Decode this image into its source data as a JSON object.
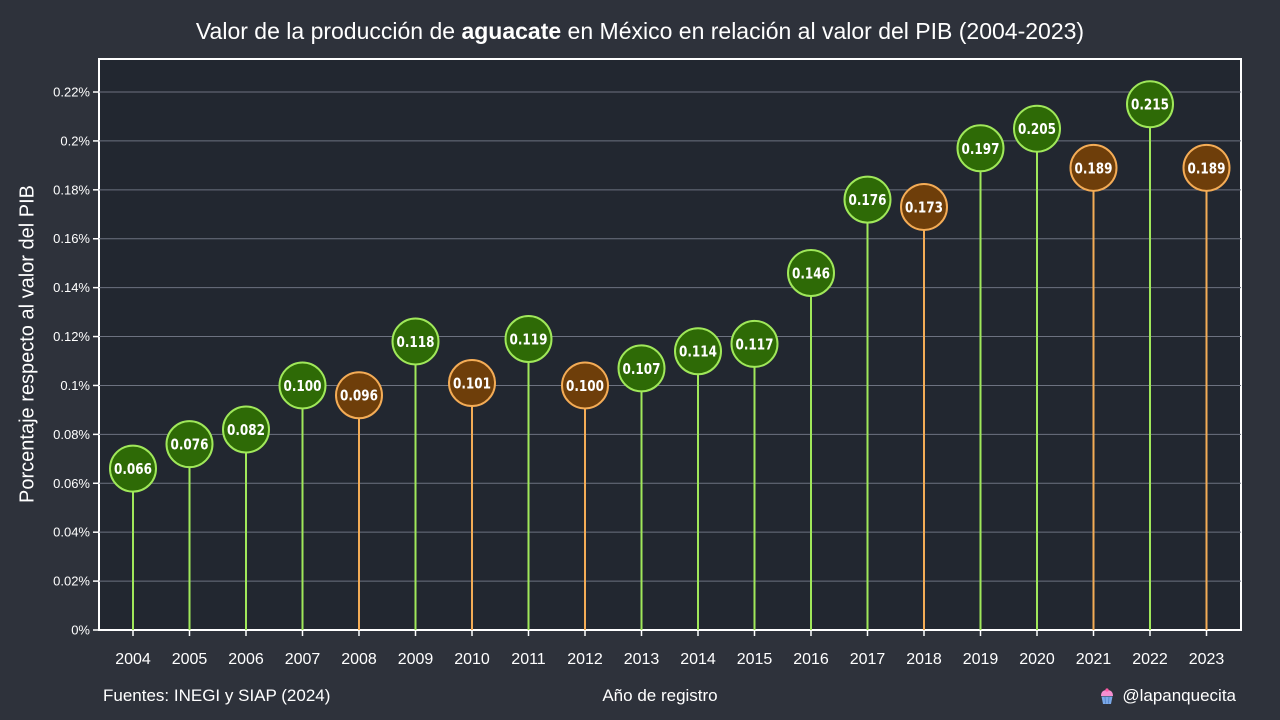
{
  "header": {
    "title_before": "Valor de la producción de ",
    "title_bold": "aguacate",
    "title_after": " en México en relación al valor del PIB (2004-2023)"
  },
  "footer": {
    "sources": "Fuentes: INEGI y SIAP (2024)",
    "credit": "@lapanquecita",
    "credit_icon": "cupcake-icon"
  },
  "colors": {
    "background": "#2e323b",
    "plot_background": "#222730",
    "increase_line": "#a0e85a",
    "increase_fill": "#2e6a06",
    "decrease_line": "#f4ac56",
    "decrease_fill": "#6e3e0a"
  },
  "chart_data": {
    "type": "lollipop",
    "xlabel": "Año de registro",
    "ylabel": "Porcentaje respecto al valor del PIB",
    "ylim": [
      0,
      0.2335
    ],
    "yticks": [
      0,
      0.02,
      0.04,
      0.06,
      0.08,
      0.1,
      0.12,
      0.14,
      0.16,
      0.18,
      0.2,
      0.22
    ],
    "ytick_labels": [
      "0%",
      "0.02%",
      "0.04%",
      "0.06%",
      "0.08%",
      "0.1%",
      "0.12%",
      "0.14%",
      "0.16%",
      "0.18%",
      "0.2%",
      "0.22%"
    ],
    "grid": true,
    "legend": "none",
    "categories": [
      "2004",
      "2005",
      "2006",
      "2007",
      "2008",
      "2009",
      "2010",
      "2011",
      "2012",
      "2013",
      "2014",
      "2015",
      "2016",
      "2017",
      "2018",
      "2019",
      "2020",
      "2021",
      "2022",
      "2023"
    ],
    "values": [
      0.066,
      0.076,
      0.082,
      0.1,
      0.096,
      0.118,
      0.101,
      0.119,
      0.1,
      0.107,
      0.114,
      0.117,
      0.146,
      0.176,
      0.173,
      0.197,
      0.205,
      0.189,
      0.215,
      0.189
    ],
    "labels": [
      "0.066",
      "0.076",
      "0.082",
      "0.100",
      "0.096",
      "0.118",
      "0.101",
      "0.119",
      "0.100",
      "0.107",
      "0.114",
      "0.117",
      "0.146",
      "0.176",
      "0.173",
      "0.197",
      "0.205",
      "0.189",
      "0.215",
      "0.189"
    ],
    "trend": [
      "up",
      "up",
      "up",
      "up",
      "down",
      "up",
      "down",
      "up",
      "down",
      "up",
      "up",
      "up",
      "up",
      "up",
      "down",
      "up",
      "up",
      "down",
      "up",
      "down"
    ]
  }
}
